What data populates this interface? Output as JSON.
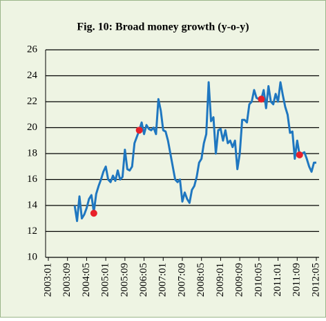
{
  "chart_data": {
    "type": "line",
    "title": "Fig. 10: Broad money growth (y-o-y)",
    "categories": [
      "2003:01",
      null,
      null,
      null,
      null,
      null,
      null,
      null,
      "2003:09",
      null,
      null,
      null,
      null,
      null,
      null,
      null,
      "2004:05",
      null,
      null,
      null,
      null,
      null,
      null,
      null,
      "2005:01",
      null,
      null,
      null,
      null,
      null,
      null,
      null,
      "2005:09",
      null,
      null,
      null,
      null,
      null,
      null,
      null,
      "2006:05",
      null,
      null,
      null,
      null,
      null,
      null,
      null,
      "2007:01",
      null,
      null,
      null,
      null,
      null,
      null,
      null,
      "2007:09",
      null,
      null,
      null,
      null,
      null,
      null,
      null,
      "2008:05",
      null,
      null,
      null,
      null,
      null,
      null,
      null,
      "2009:01",
      null,
      null,
      null,
      null,
      null,
      null,
      null,
      "2009:09",
      null,
      null,
      null,
      null,
      null,
      null,
      null,
      "2010:05",
      null,
      null,
      null,
      null,
      null,
      null,
      null,
      "2011:01",
      null,
      null,
      null,
      null,
      null,
      null,
      null,
      "2011:09",
      null,
      null,
      null,
      null,
      null,
      null,
      null,
      "2012:05"
    ],
    "series": [
      {
        "color": "#1f77c0",
        "values": [
          null,
          null,
          null,
          null,
          null,
          null,
          null,
          null,
          null,
          null,
          null,
          14.0,
          12.8,
          14.7,
          13.0,
          13.3,
          13.8,
          14.5,
          14.8,
          13.5,
          14.9,
          15.5,
          16.0,
          16.6,
          17.0,
          16.0,
          15.8,
          16.3,
          15.9,
          16.7,
          16.0,
          16.2,
          18.3,
          16.8,
          16.7,
          17.0,
          18.8,
          19.3,
          19.8,
          20.4,
          19.5,
          20.2,
          19.9,
          19.8,
          20.0,
          19.5,
          22.2,
          21.3,
          19.8,
          19.7,
          19.0,
          18.0,
          17.0,
          16.0,
          15.8,
          16.0,
          14.3,
          15.0,
          14.5,
          14.2,
          15.2,
          15.5,
          16.2,
          17.3,
          17.6,
          18.8,
          19.5,
          23.5,
          20.5,
          20.8,
          18.0,
          19.8,
          19.9,
          19.0,
          19.8,
          18.8,
          19.0,
          18.5,
          19.0,
          16.8,
          18.0,
          20.6,
          20.6,
          20.4,
          21.8,
          22.0,
          22.9,
          22.3,
          22.2,
          22.2,
          22.9,
          21.5,
          23.2,
          22.0,
          21.8,
          22.6,
          22.0,
          23.5,
          22.5,
          21.6,
          21.0,
          19.6,
          19.7,
          17.6,
          19.0,
          17.9,
          18.0,
          18.1,
          17.6,
          17.0,
          16.6,
          17.3,
          17.3
        ]
      },
      {
        "color": "#e8202a",
        "marker": true,
        "values": [
          null,
          null,
          null,
          null,
          null,
          null,
          null,
          null,
          null,
          null,
          null,
          null,
          null,
          null,
          null,
          null,
          null,
          null,
          null,
          13.4,
          null,
          null,
          null,
          null,
          null,
          null,
          null,
          null,
          null,
          null,
          null,
          null,
          null,
          null,
          null,
          null,
          null,
          null,
          19.8,
          null,
          null,
          null,
          null,
          null,
          null,
          null,
          null,
          null,
          null,
          null,
          null,
          null,
          null,
          null,
          null,
          null,
          null,
          null,
          null,
          null,
          null,
          null,
          null,
          null,
          null,
          null,
          null,
          null,
          null,
          null,
          null,
          null,
          null,
          null,
          null,
          null,
          null,
          null,
          null,
          null,
          null,
          null,
          null,
          null,
          null,
          null,
          null,
          null,
          null,
          22.2,
          null,
          null,
          null,
          null,
          null,
          null,
          null,
          null,
          null,
          null,
          null,
          null,
          null,
          null,
          null,
          17.9,
          null,
          null,
          null,
          null,
          null,
          null,
          null
        ]
      }
    ],
    "ylim": [
      10,
      26
    ],
    "yticks": [
      10,
      12,
      14,
      16,
      18,
      20,
      22,
      24,
      26
    ],
    "grid": true
  }
}
